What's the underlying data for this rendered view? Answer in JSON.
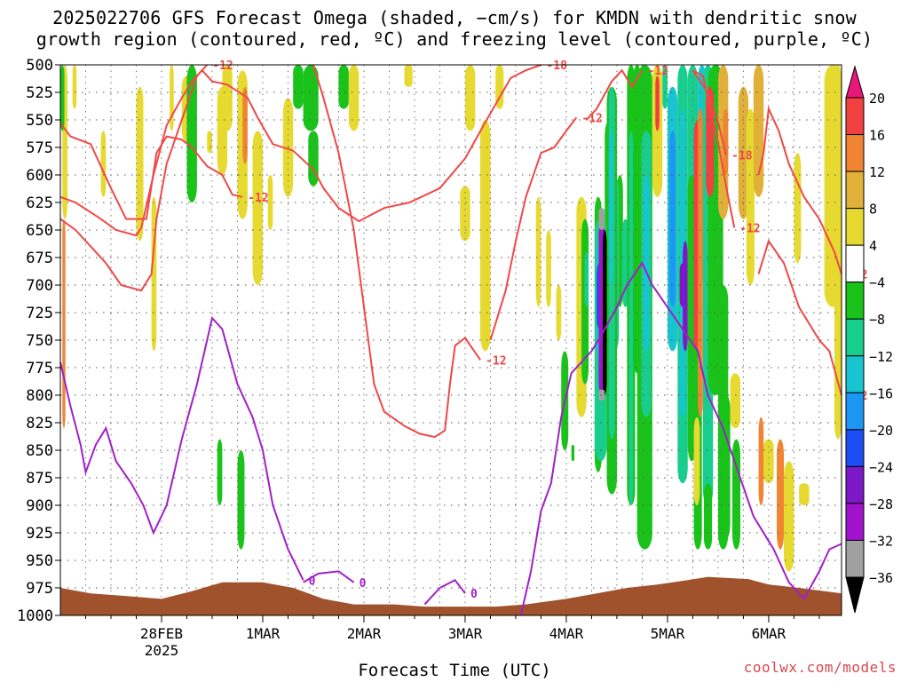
{
  "title_line1": "2025022706 GFS Forecast Omega (shaded, −cm/s) for KMDN with dendritic snow",
  "title_line2": "growth region (contoured, red, ºC) and freezing level (contoured, purple, ºC)",
  "credit": "coolwx.com/models",
  "chart_data": {
    "type": "heatmap",
    "title": "2025022706 GFS Forecast Omega (shaded, −cm/s) for KMDN with dendritic snow growth region (contoured, red, ºC) and freezing level (contoured, purple, ºC)",
    "xlabel": "Forecast Time (UTC)",
    "ylabel": "",
    "y_ticks": [
      500,
      525,
      550,
      575,
      600,
      625,
      650,
      675,
      700,
      725,
      750,
      775,
      800,
      825,
      850,
      875,
      900,
      925,
      950,
      975,
      1000
    ],
    "ylim": [
      1000,
      500
    ],
    "y_axis": "pressure (inverted)",
    "x_ticks": [
      {
        "label": "28FEB",
        "sublabel": "2025",
        "t": 1
      },
      {
        "label": "1MAR",
        "sublabel": "",
        "t": 2
      },
      {
        "label": "2MAR",
        "sublabel": "",
        "t": 3
      },
      {
        "label": "3MAR",
        "sublabel": "",
        "t": 4
      },
      {
        "label": "4MAR",
        "sublabel": "",
        "t": 5
      },
      {
        "label": "5MAR",
        "sublabel": "",
        "t": 6
      },
      {
        "label": "6MAR",
        "sublabel": "",
        "t": 7
      }
    ],
    "xlim": [
      0.0,
      7.72
    ],
    "grid": true,
    "colorbar": {
      "labels": [
        20,
        16,
        12,
        8,
        4,
        -4,
        -8,
        -12,
        -16,
        -20,
        -24,
        -28,
        -32,
        -36
      ],
      "colors": [
        "#e8177a",
        "#f04040",
        "#f08432",
        "#e0b038",
        "#e6da30",
        "#ffffff",
        "#19c319",
        "#18cd8e",
        "#18c4cf",
        "#1c97f4",
        "#1c4ef4",
        "#7d18c8",
        "#a212cd",
        "#a0a0a0",
        "#000000"
      ]
    },
    "contour_labels": [
      {
        "text": "-18",
        "color": "#f04848"
      },
      {
        "text": "-12",
        "color": "#f04848"
      },
      {
        "text": "0",
        "color": "#a020c8"
      }
    ],
    "red_contours": [
      {
        "name": "-18",
        "points": [
          [
            0.0,
            620
          ],
          [
            0.15,
            625
          ],
          [
            0.4,
            640
          ],
          [
            0.55,
            650
          ],
          [
            0.75,
            655
          ],
          [
            0.8,
            648
          ],
          [
            0.92,
            600
          ],
          [
            1.05,
            555
          ],
          [
            1.2,
            530
          ],
          [
            1.3,
            515
          ],
          [
            1.4,
            505
          ],
          [
            1.5,
            515
          ],
          [
            1.65,
            518
          ],
          [
            1.85,
            530
          ],
          [
            1.95,
            548
          ],
          [
            2.1,
            572
          ],
          [
            2.3,
            578
          ],
          [
            2.5,
            595
          ],
          [
            2.6,
            612
          ],
          [
            2.75,
            630
          ],
          [
            2.95,
            642
          ],
          [
            3.2,
            630
          ],
          [
            3.45,
            625
          ],
          [
            3.75,
            612
          ],
          [
            4.0,
            585
          ],
          [
            4.2,
            552
          ],
          [
            4.35,
            528
          ],
          [
            4.45,
            512
          ],
          [
            4.6,
            505
          ],
          [
            4.75,
            500
          ]
        ]
      },
      {
        "name": "-12",
        "points": [
          [
            0.0,
            553
          ],
          [
            0.1,
            565
          ],
          [
            0.3,
            572
          ],
          [
            0.5,
            612
          ],
          [
            0.65,
            640
          ],
          [
            0.85,
            640
          ],
          [
            0.95,
            580
          ],
          [
            1.05,
            565
          ],
          [
            1.2,
            568
          ],
          [
            1.3,
            575
          ],
          [
            1.45,
            592
          ],
          [
            1.6,
            600
          ],
          [
            1.7,
            618
          ],
          [
            1.8,
            620
          ]
        ]
      },
      {
        "name": "-12",
        "points": [
          [
            0.0,
            640
          ],
          [
            0.15,
            650
          ],
          [
            0.3,
            665
          ],
          [
            0.45,
            680
          ],
          [
            0.6,
            700
          ],
          [
            0.8,
            705
          ],
          [
            0.9,
            690
          ],
          [
            0.95,
            640
          ],
          [
            1.05,
            590
          ],
          [
            1.2,
            550
          ],
          [
            1.35,
            510
          ],
          [
            1.45,
            500
          ]
        ]
      },
      {
        "name": "-12",
        "points": [
          [
            2.5,
            500
          ],
          [
            2.6,
            530
          ],
          [
            2.75,
            580
          ],
          [
            2.9,
            650
          ],
          [
            3.0,
            720
          ],
          [
            3.1,
            790
          ],
          [
            3.2,
            815
          ],
          [
            3.4,
            828
          ],
          [
            3.55,
            835
          ],
          [
            3.7,
            838
          ],
          [
            3.8,
            832
          ],
          [
            3.85,
            790
          ],
          [
            3.9,
            755
          ],
          [
            4.0,
            748
          ],
          [
            4.15,
            768
          ]
        ]
      },
      {
        "name": "-12",
        "points": [
          [
            4.25,
            750
          ],
          [
            4.4,
            705
          ],
          [
            4.5,
            660
          ],
          [
            4.6,
            620
          ],
          [
            4.75,
            580
          ],
          [
            4.88,
            575
          ],
          [
            5.0,
            560
          ],
          [
            5.1,
            548
          ]
        ]
      },
      {
        "name": "-12",
        "points": [
          [
            5.2,
            550
          ],
          [
            5.3,
            540
          ],
          [
            5.45,
            515
          ],
          [
            5.55,
            505
          ],
          [
            5.65,
            520
          ],
          [
            5.75,
            505
          ]
        ]
      },
      {
        "name": "-12",
        "points": [
          [
            6.25,
            505
          ],
          [
            6.35,
            510
          ],
          [
            6.5,
            570
          ],
          [
            6.6,
            620
          ],
          [
            6.66,
            648
          ]
        ]
      },
      {
        "name": "-18",
        "points": [
          [
            6.25,
            505
          ],
          [
            6.4,
            525
          ],
          [
            6.5,
            552
          ],
          [
            6.58,
            582
          ]
        ]
      },
      {
        "name": "-12",
        "points": [
          [
            6.9,
            600
          ],
          [
            6.95,
            580
          ],
          [
            7.0,
            540
          ],
          [
            7.1,
            560
          ],
          [
            7.2,
            590
          ],
          [
            7.35,
            620
          ],
          [
            7.5,
            640
          ],
          [
            7.65,
            670
          ],
          [
            7.72,
            690
          ]
        ]
      },
      {
        "name": "-12",
        "points": [
          [
            6.9,
            690
          ],
          [
            7.0,
            660
          ],
          [
            7.15,
            680
          ],
          [
            7.3,
            720
          ],
          [
            7.5,
            750
          ],
          [
            7.6,
            760
          ],
          [
            7.72,
            800
          ]
        ]
      }
    ],
    "purple_contours": [
      {
        "name": "0",
        "points": [
          [
            0.0,
            770
          ],
          [
            0.1,
            810
          ],
          [
            0.2,
            845
          ],
          [
            0.25,
            870
          ],
          [
            0.35,
            845
          ],
          [
            0.45,
            830
          ],
          [
            0.55,
            860
          ],
          [
            0.7,
            880
          ],
          [
            0.82,
            900
          ],
          [
            0.92,
            925
          ],
          [
            1.05,
            900
          ],
          [
            1.2,
            840
          ],
          [
            1.35,
            790
          ],
          [
            1.5,
            730
          ],
          [
            1.6,
            740
          ],
          [
            1.75,
            790
          ],
          [
            1.9,
            820
          ],
          [
            2.0,
            850
          ],
          [
            2.1,
            900
          ],
          [
            2.25,
            940
          ],
          [
            2.4,
            968
          ]
        ]
      },
      {
        "name": "0",
        "points": [
          [
            2.4,
            970
          ],
          [
            2.55,
            962
          ],
          [
            2.75,
            960
          ],
          [
            2.9,
            970
          ]
        ]
      },
      {
        "name": "0",
        "points": [
          [
            3.6,
            990
          ],
          [
            3.75,
            975
          ],
          [
            3.9,
            968
          ],
          [
            4.0,
            980
          ]
        ]
      },
      {
        "name": "0",
        "points": [
          [
            4.55,
            1000
          ],
          [
            4.65,
            960
          ],
          [
            4.75,
            905
          ],
          [
            4.85,
            880
          ],
          [
            4.9,
            850
          ],
          [
            4.95,
            820
          ],
          [
            5.05,
            780
          ],
          [
            5.15,
            770
          ],
          [
            5.25,
            760
          ],
          [
            5.35,
            745
          ],
          [
            5.5,
            720
          ],
          [
            5.6,
            700
          ],
          [
            5.75,
            680
          ],
          [
            5.85,
            700
          ],
          [
            6.0,
            720
          ],
          [
            6.15,
            740
          ],
          [
            6.3,
            760
          ],
          [
            6.4,
            800
          ],
          [
            6.55,
            830
          ],
          [
            6.7,
            870
          ],
          [
            6.85,
            910
          ],
          [
            7.05,
            940
          ],
          [
            7.2,
            970
          ],
          [
            7.35,
            985
          ],
          [
            7.5,
            960
          ],
          [
            7.6,
            940
          ],
          [
            7.72,
            935
          ]
        ]
      }
    ],
    "terrain": {
      "color": "#a0522d",
      "baseline_hpa": 1000
    }
  }
}
